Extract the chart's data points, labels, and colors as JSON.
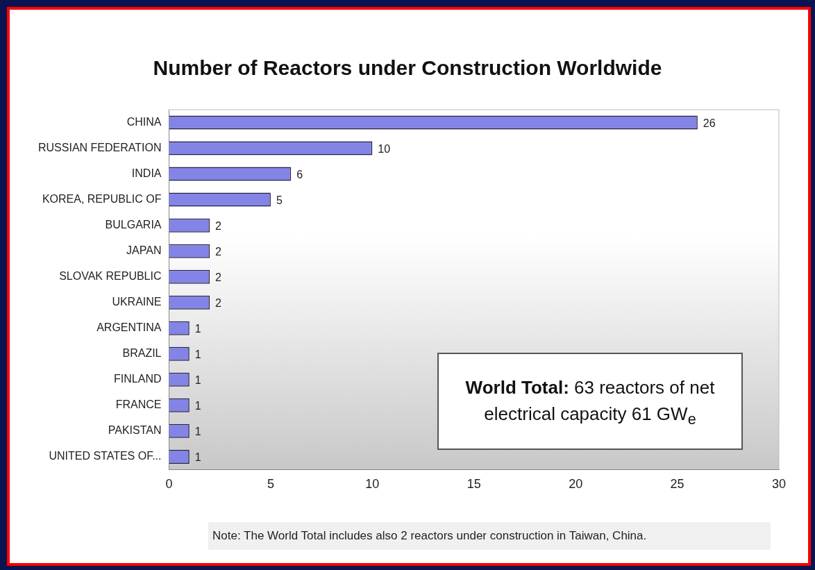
{
  "chart_data": {
    "type": "bar",
    "orientation": "horizontal",
    "title": "Number of Reactors under Construction Worldwide",
    "categories": [
      "CHINA",
      "RUSSIAN FEDERATION",
      "INDIA",
      "KOREA, REPUBLIC OF",
      "BULGARIA",
      "JAPAN",
      "SLOVAK REPUBLIC",
      "UKRAINE",
      "ARGENTINA",
      "BRAZIL",
      "FINLAND",
      "FRANCE",
      "PAKISTAN",
      "UNITED STATES OF..."
    ],
    "values": [
      26,
      10,
      6,
      5,
      2,
      2,
      2,
      2,
      1,
      1,
      1,
      1,
      1,
      1
    ],
    "color": "#8484e6",
    "xlim": [
      0,
      30
    ],
    "xticks": [
      0,
      5,
      10,
      15,
      20,
      25,
      30
    ],
    "data_labels": true,
    "grid": false,
    "legend": false,
    "annotations": [
      "World Total: 63 reactors of net electrical capacity 61 GW$_{e}$",
      "Note: The World Total includes also 2 reactors under construction in Taiwan, China."
    ]
  }
}
